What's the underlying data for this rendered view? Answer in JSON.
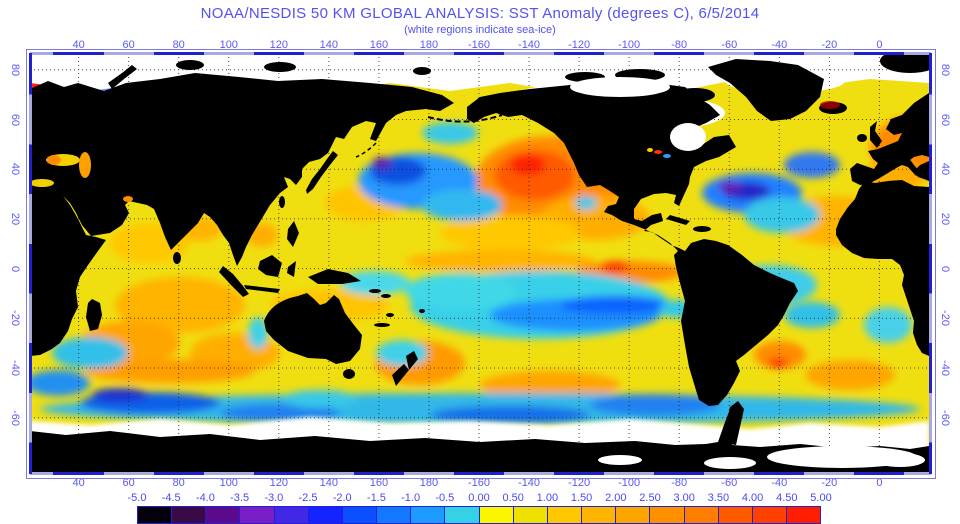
{
  "title": "NOAA/NESDIS 50 KM GLOBAL ANALYSIS: SST Anomaly (degrees C), 6/5/2014",
  "subtitle": "(white regions indicate sea-ice)",
  "axes": {
    "lon_labels": [
      "40",
      "60",
      "80",
      "100",
      "120",
      "140",
      "160",
      "180",
      "-160",
      "-140",
      "-120",
      "-100",
      "-80",
      "-60",
      "-40",
      "-20",
      "0"
    ],
    "lat_labels": [
      "80",
      "60",
      "40",
      "20",
      "0",
      "-20",
      "-40",
      "-60"
    ]
  },
  "colorbar": {
    "units": "degrees C",
    "tick_labels": [
      "-5.0",
      "-4.5",
      "-4.0",
      "-3.5",
      "-3.0",
      "-2.5",
      "-2.0",
      "-1.5",
      "-1.0",
      "-0.5",
      "0.00",
      "0.50",
      "1.00",
      "1.50",
      "2.00",
      "2.50",
      "3.00",
      "3.50",
      "4.00",
      "4.50",
      "5.00"
    ],
    "segment_colors": [
      "#05000a",
      "#3a0a46",
      "#5c0a8c",
      "#7a1fc8",
      "#4128e6",
      "#1423ff",
      "#0a50ff",
      "#1478ff",
      "#1e9bff",
      "#35d2e6",
      "#fdf500",
      "#f0e000",
      "#ffc800",
      "#ffb400",
      "#ffa500",
      "#ff9100",
      "#ff7d00",
      "#ff5a00",
      "#ff4000",
      "#ff1e00"
    ]
  },
  "legend_notes": {
    "land_color": "#000000",
    "sea_ice_color": "#ffffff",
    "ocean_base_color": "#f0df10",
    "accent_text_color": "#5252f0",
    "frame_color": "#1f1fd4"
  }
}
